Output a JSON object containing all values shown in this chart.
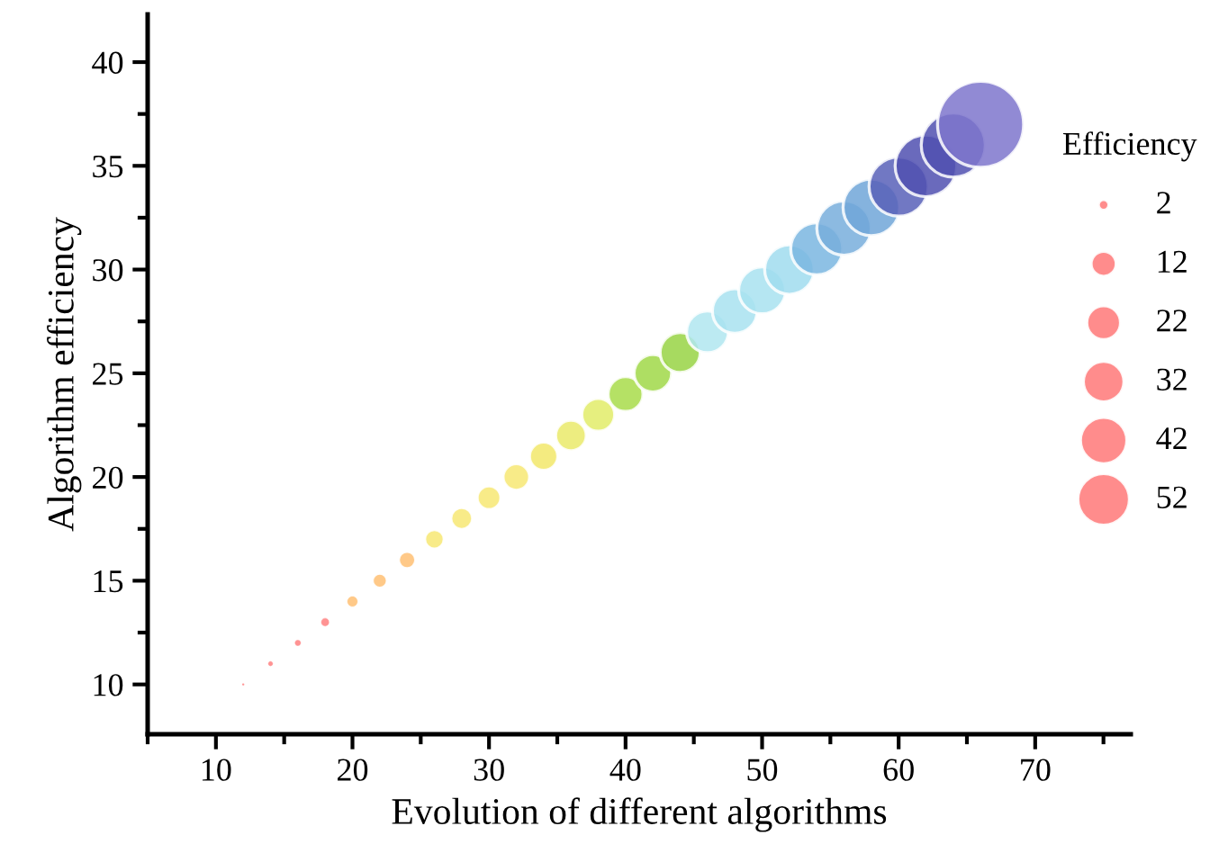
{
  "chart_data": {
    "type": "bubble",
    "xlabel": "Evolution of different algorithms",
    "ylabel": "Algorithm efficiency",
    "legend_title": "Efficiency",
    "x": [
      12,
      14,
      16,
      18,
      20,
      22,
      24,
      26,
      28,
      30,
      32,
      34,
      36,
      38,
      40,
      42,
      44,
      46,
      48,
      50,
      52,
      54,
      56,
      58,
      60,
      62,
      64,
      66
    ],
    "values": [
      10,
      11,
      12,
      13,
      14,
      15,
      16,
      17,
      18,
      19,
      20,
      21,
      22,
      23,
      24,
      25,
      26,
      27,
      28,
      29,
      30,
      31,
      32,
      33,
      34,
      35,
      36,
      37
    ],
    "sizes": [
      0.1,
      0.5,
      0.8,
      1.4,
      2.3,
      3.4,
      4.8,
      6.4,
      8.3,
      10,
      13,
      15,
      18,
      21,
      24,
      28,
      32,
      35,
      40,
      44,
      49,
      54,
      59,
      64,
      70,
      76,
      82,
      148
    ],
    "colors": [
      "#ff8080",
      "#ff8080",
      "#ff8080",
      "#ff8080",
      "#ffbf73",
      "#ffbf73",
      "#ffbf73",
      "#f7e873",
      "#f7e873",
      "#f7e873",
      "#f7e873",
      "#f2e86a",
      "#eaea6a",
      "#e2ec68",
      "#a8dc4a",
      "#a0d848",
      "#98d444",
      "#b0e6f0",
      "#a8e2f0",
      "#a8e2f0",
      "#a0dcee",
      "#7ab6e0",
      "#78aedc",
      "#70a6d8",
      "#5860b8",
      "#5050b0",
      "#5050b0",
      "#7e76cc"
    ],
    "size_legend": [
      2,
      12,
      22,
      32,
      42,
      52
    ],
    "xlim": [
      5,
      77
    ],
    "xticks": [
      10,
      20,
      30,
      40,
      50,
      60,
      70
    ],
    "ylim": [
      7.6,
      42.3
    ],
    "yticks": [
      10,
      15,
      20,
      25,
      30,
      35,
      40
    ],
    "grid": false
  }
}
